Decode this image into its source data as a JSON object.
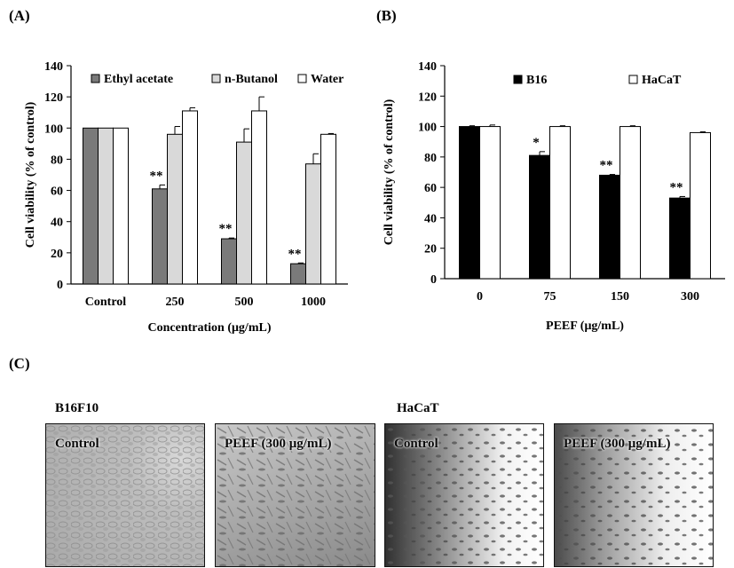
{
  "panels": {
    "A": "(A)",
    "B": "(B)",
    "C": "(C)"
  },
  "chart_data": [
    {
      "type": "bar",
      "ylabel": "Cell viability (% of control)",
      "xlabel": "Concentration (μg/mL)",
      "ylim": [
        0,
        140
      ],
      "yticks": [
        0,
        20,
        40,
        60,
        80,
        100,
        120,
        140
      ],
      "categories": [
        "Control",
        "250",
        "500",
        "1000"
      ],
      "legend_position": "top",
      "series": [
        {
          "name": "Ethyl acetate",
          "color": "#7a7a7a",
          "values": [
            100,
            61,
            29,
            13
          ],
          "errors": [
            0,
            2.5,
            0.5,
            0.5
          ],
          "significance": [
            "",
            "**",
            "**",
            "**"
          ]
        },
        {
          "name": "n-Butanol",
          "color": "#d9d9d9",
          "values": [
            100,
            96,
            91,
            77
          ],
          "errors": [
            0,
            5,
            8.5,
            6.5
          ],
          "significance": [
            "",
            "",
            "",
            ""
          ]
        },
        {
          "name": "Water",
          "color": "#ffffff",
          "values": [
            100,
            111,
            111,
            96
          ],
          "errors": [
            0,
            2,
            9,
            0.5
          ],
          "significance": [
            "",
            "",
            "",
            ""
          ]
        }
      ]
    },
    {
      "type": "bar",
      "ylabel": "Cell viability (% of control)",
      "xlabel": "PEEF (μg/mL)",
      "ylim": [
        0,
        140
      ],
      "yticks": [
        0,
        20,
        40,
        60,
        80,
        100,
        120,
        140
      ],
      "categories": [
        "0",
        "75",
        "150",
        "300"
      ],
      "legend_position": "top",
      "series": [
        {
          "name": "B16",
          "color": "#000000",
          "values": [
            100,
            81,
            68,
            53
          ],
          "errors": [
            0.5,
            2.5,
            0.5,
            1
          ],
          "significance": [
            "",
            "*",
            "**",
            "**"
          ]
        },
        {
          "name": "HaCaT",
          "color": "#ffffff",
          "values": [
            100,
            100,
            100,
            96
          ],
          "errors": [
            1,
            0.5,
            0.5,
            0.5
          ],
          "significance": [
            "",
            "",
            "",
            ""
          ]
        }
      ]
    }
  ],
  "micrographs": {
    "group_labels": [
      "B16F10",
      "HaCaT"
    ],
    "images": [
      {
        "caption": "Control",
        "cell_line": "B16F10"
      },
      {
        "caption": "PEEF (300 μg/mL)",
        "cell_line": "B16F10"
      },
      {
        "caption": "Control",
        "cell_line": "HaCaT"
      },
      {
        "caption": "PEEF (300 μg/mL)",
        "cell_line": "HaCaT"
      }
    ]
  }
}
